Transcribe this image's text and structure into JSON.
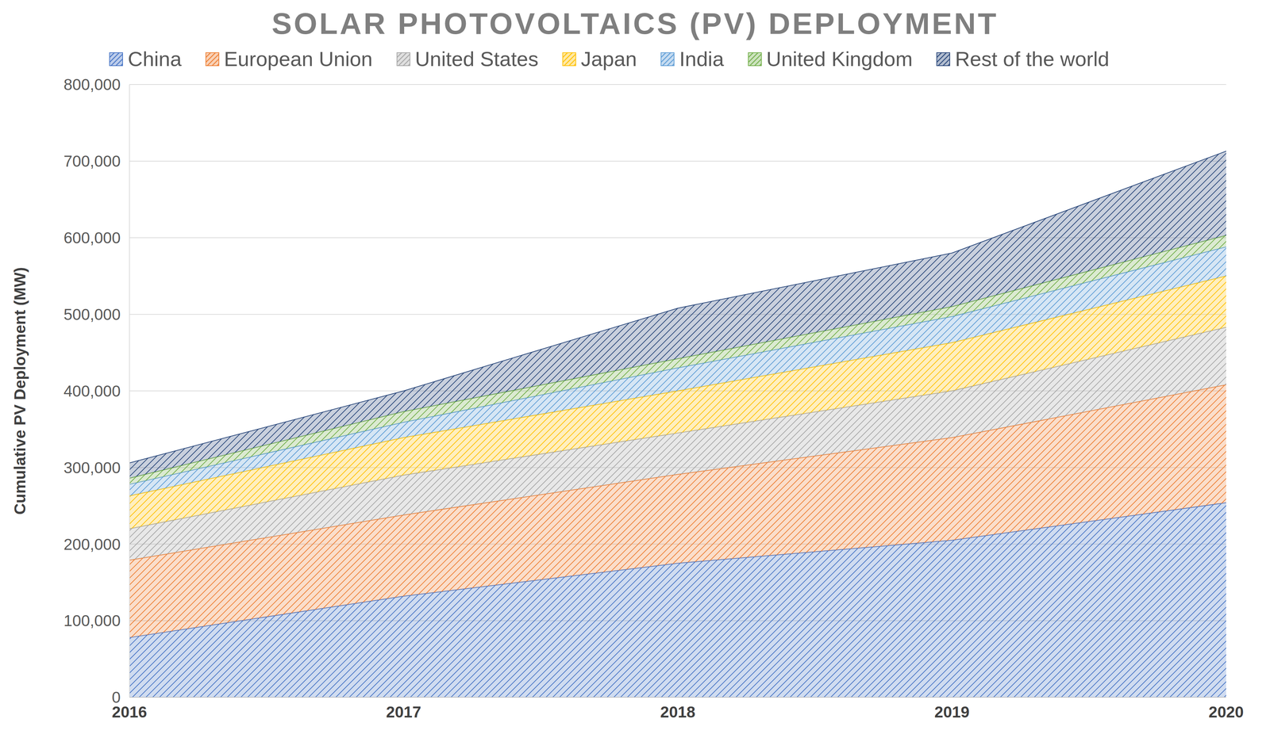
{
  "chart_data": {
    "type": "area",
    "title": "SOLAR PHOTOVOLTAICS (PV) DEPLOYMENT",
    "y_label": "Cumulative PV Deployment (MW)",
    "categories": [
      "2016",
      "2017",
      "2018",
      "2019",
      "2020"
    ],
    "series": [
      {
        "name": "China",
        "color": "#4472c4",
        "values": [
          78000,
          132000,
          175000,
          205000,
          254000
        ]
      },
      {
        "name": "European Union",
        "color": "#ed7d31",
        "values": [
          101000,
          106000,
          116000,
          134000,
          154000
        ]
      },
      {
        "name": "United States",
        "color": "#a5a5a5",
        "values": [
          41000,
          52000,
          54000,
          61000,
          75000
        ]
      },
      {
        "name": "Japan",
        "color": "#ffc000",
        "values": [
          43000,
          49000,
          55000,
          63000,
          67000
        ]
      },
      {
        "name": "India",
        "color": "#5b9bd5",
        "values": [
          15000,
          20000,
          30000,
          34000,
          38000
        ]
      },
      {
        "name": "United Kingdom",
        "color": "#70ad47",
        "values": [
          8000,
          14000,
          12000,
          13000,
          15000
        ]
      },
      {
        "name": "Rest of the world",
        "color": "#264478",
        "values": [
          20000,
          27000,
          66000,
          70000,
          110000
        ]
      }
    ],
    "ylim": [
      0,
      800000
    ],
    "yticks": [
      0,
      {
        "value": 100000,
        "label": "100,000"
      },
      {
        "value": 200000,
        "label": "200,000"
      },
      {
        "value": 300000,
        "label": "300,000"
      },
      {
        "value": 400000,
        "label": "400,000"
      },
      {
        "value": 500000,
        "label": "500,000"
      },
      {
        "value": 600000,
        "label": "600,000"
      },
      {
        "value": 700000,
        "label": "700,000"
      },
      {
        "value": 800000,
        "label": "800,000"
      }
    ],
    "grid": true,
    "stacked": true,
    "legend": "top"
  }
}
